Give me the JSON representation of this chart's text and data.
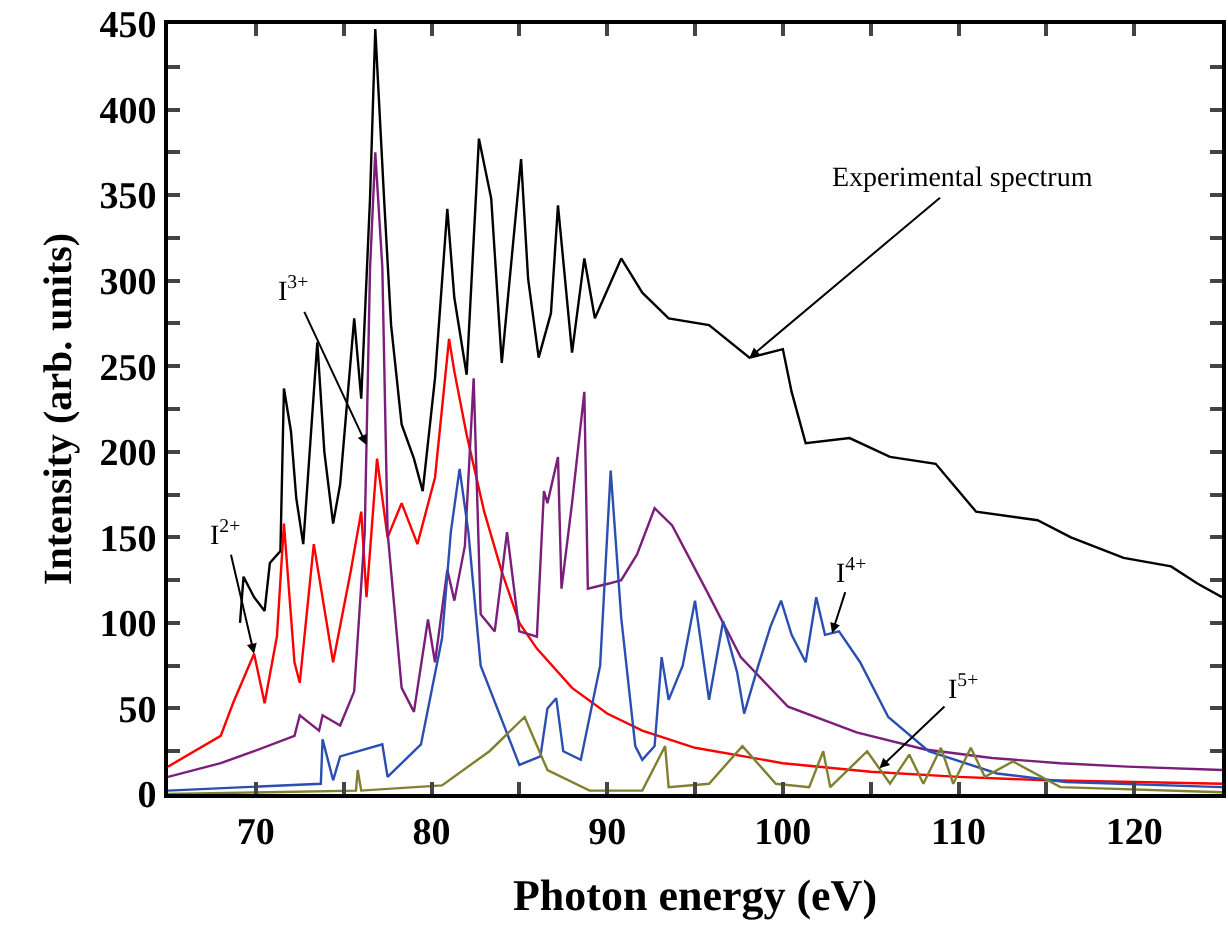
{
  "chart_data": {
    "type": "line",
    "xlabel": "Photon energy (eV)",
    "ylabel": "Intensity (arb. units)",
    "xlim": [
      65,
      125
    ],
    "ylim": [
      0,
      450
    ],
    "xticks": [
      70,
      {
        "value": 75,
        "label": null
      },
      80,
      {
        "value": 85,
        "label": null
      },
      90,
      {
        "value": 95,
        "label": null
      },
      100,
      {
        "value": 105,
        "label": null
      },
      110,
      {
        "value": 115,
        "label": null
      },
      120
    ],
    "yticks": [
      0,
      {
        "value": 25,
        "label": null
      },
      50,
      {
        "value": 75,
        "label": null
      },
      100,
      {
        "value": 125,
        "label": null
      },
      150,
      {
        "value": 175,
        "label": null
      },
      200,
      {
        "value": 225,
        "label": null
      },
      250,
      {
        "value": 275,
        "label": null
      },
      300,
      {
        "value": 325,
        "label": null
      },
      350,
      {
        "value": 375,
        "label": null
      },
      400,
      {
        "value": 425,
        "label": null
      },
      450
    ],
    "grid": false,
    "marker": "none",
    "line_style": "solid",
    "series": [
      {
        "color": "#000000",
        "x": [
          69.1,
          69.3,
          69.9,
          70.5,
          70.8,
          71.4,
          71.6,
          72.0,
          72.3,
          72.7,
          73.5,
          73.9,
          74.4,
          74.8,
          75.6,
          76.0,
          76.5,
          76.8,
          77.3,
          77.7,
          78.3,
          79.0,
          79.5,
          80.2,
          80.9,
          81.3,
          82.0,
          82.7,
          83.4,
          84.0,
          85.1,
          85.5,
          86.1,
          86.8,
          87.2,
          88.0,
          88.7,
          89.3,
          90.8,
          92.0,
          93.5,
          95.8,
          98.1,
          100.0,
          100.5,
          101.3,
          103.8,
          106.1,
          108.7,
          111.0,
          114.5,
          116.4,
          119.4,
          122.1,
          123.6,
          125
        ],
        "values": [
          100,
          127,
          115,
          107,
          135,
          142,
          237,
          212,
          173,
          146,
          264,
          200,
          158,
          181,
          278,
          231,
          348,
          447,
          348,
          274,
          216,
          196,
          177,
          243,
          342,
          290,
          245,
          383,
          348,
          252,
          371,
          301,
          255,
          281,
          344,
          258,
          313,
          278,
          313,
          293,
          278,
          274,
          255,
          260,
          235,
          205,
          208,
          197,
          193,
          165,
          160,
          150,
          138,
          133,
          123,
          115
        ]
      },
      {
        "color": "#ff0000",
        "x": [
          65,
          68.0,
          68.7,
          69.9,
          70.5,
          71.2,
          71.6,
          72.2,
          72.5,
          73.3,
          74.4,
          75.4,
          76.0,
          76.3,
          76.9,
          77.5,
          78.3,
          79.2,
          80.2,
          81.0,
          81.3,
          82.0,
          83.0,
          84.0,
          85.0,
          86.0,
          88.0,
          90.0,
          92.0,
          95.0,
          100.0,
          105.0,
          110.0,
          115.0,
          120.0,
          125
        ],
        "values": [
          16,
          34,
          53,
          82,
          53,
          92,
          158,
          77,
          65,
          146,
          77,
          130,
          165,
          115,
          196,
          150,
          170,
          146,
          185,
          266,
          247,
          210,
          165,
          130,
          100,
          85,
          62,
          47,
          37,
          27,
          18,
          13,
          10,
          8,
          7,
          6
        ]
      },
      {
        "color": "#7b1e7a",
        "x": [
          65,
          68.0,
          69.9,
          72.2,
          72.5,
          73.6,
          73.8,
          74.8,
          75.6,
          76.2,
          76.5,
          76.8,
          77.2,
          77.5,
          78.3,
          79.0,
          79.8,
          80.2,
          80.9,
          81.3,
          81.9,
          82.4,
          82.8,
          83.6,
          84.3,
          85.0,
          86.0,
          86.4,
          86.6,
          87.2,
          87.4,
          88.0,
          88.7,
          88.9,
          90.1,
          90.8,
          91.7,
          92.7,
          93.7,
          95.7,
          97.6,
          100.3,
          104.2,
          108.1,
          111.9,
          115.8,
          119.6,
          125
        ],
        "values": [
          10,
          18,
          25,
          34,
          46,
          37,
          46,
          40,
          60,
          153,
          307,
          375,
          308,
          153,
          62,
          48,
          102,
          77,
          131,
          113,
          145,
          243,
          105,
          95,
          153,
          95,
          92,
          177,
          170,
          197,
          120,
          170,
          235,
          120,
          123,
          125,
          140,
          167,
          157,
          118,
          80,
          51,
          36,
          26,
          21,
          18,
          16,
          14
        ]
      },
      {
        "color": "#2a4fb0",
        "x": [
          65,
          73.7,
          73.8,
          74.4,
          74.8,
          77.2,
          77.5,
          79.4,
          80.6,
          81.1,
          81.6,
          82.1,
          82.8,
          85.0,
          86.2,
          86.6,
          87.1,
          87.5,
          88.5,
          89.6,
          90.2,
          90.8,
          91.6,
          92.0,
          92.7,
          93.1,
          93.5,
          94.3,
          95.0,
          95.8,
          96.6,
          97.4,
          97.8,
          98.6,
          99.3,
          99.9,
          100.5,
          101.3,
          101.9,
          102.4,
          103.2,
          104.4,
          106.0,
          108.3,
          112.2,
          116.1,
          125
        ],
        "values": [
          2,
          6,
          32,
          8,
          22,
          29,
          10,
          29,
          91,
          153,
          190,
          153,
          75,
          17,
          22,
          50,
          56,
          25,
          20,
          75,
          189,
          103,
          28,
          20,
          28,
          80,
          55,
          75,
          113,
          55,
          101,
          71,
          47,
          75,
          98,
          113,
          93,
          77,
          115,
          93,
          95,
          77,
          45,
          25,
          12,
          7,
          4
        ]
      },
      {
        "color": "#808030",
        "x": [
          65,
          75.7,
          75.8,
          76.0,
          80.6,
          83.3,
          85.3,
          86.6,
          89.0,
          92.0,
          93.3,
          93.5,
          95.8,
          97.7,
          99.6,
          101.5,
          102.3,
          102.7,
          104.8,
          106.1,
          107.2,
          108.0,
          109.0,
          109.7,
          110.7,
          111.5,
          113.1,
          115.8,
          125
        ],
        "values": [
          0,
          2,
          14,
          2,
          5,
          25,
          45,
          14,
          2,
          2,
          28,
          4,
          6,
          28,
          6,
          4,
          25,
          4,
          25,
          6,
          23,
          6,
          27,
          6,
          27,
          10,
          19,
          4,
          1
        ]
      }
    ],
    "annotations": [
      {
        "text": "Experimental spectrum",
        "x": 98.1,
        "y": 255
      },
      {
        "text": "I$^{2+}$",
        "x": 69.9,
        "y": 82
      },
      {
        "text": "I$^{3+}$",
        "x": 76.3,
        "y": 204
      },
      {
        "text": "I$^{4+}$",
        "x": 102.8,
        "y": 94
      },
      {
        "text": "I$^{5+}$",
        "x": 105.5,
        "y": 15
      }
    ]
  }
}
